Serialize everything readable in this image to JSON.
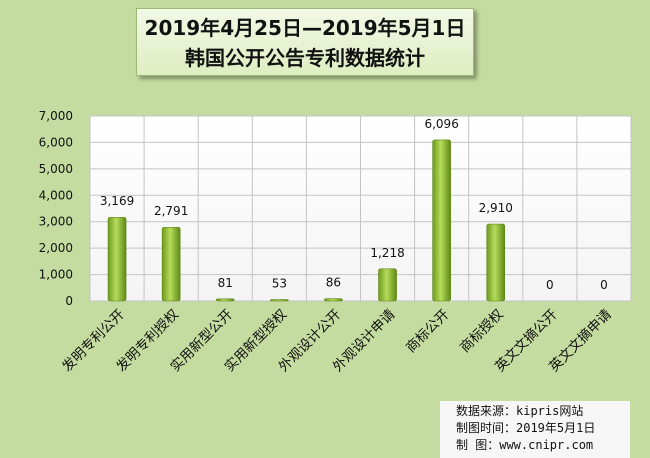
{
  "title_lines": [
    "2019年4月25日—2019年5月1日",
    "韩国公开公告专利数据统计"
  ],
  "source": {
    "line1": "数据来源：kipris网站",
    "line2": "制图时间：2019年5月1日",
    "line3": "制    图：www.cnipr.com"
  },
  "chart_data": {
    "type": "bar",
    "title": "2019年4月25日—2019年5月1日 韩国公开公告专利数据统计",
    "categories": [
      "发明专利公开",
      "发明专利授权",
      "实用新型公开",
      "实用新型授权",
      "外观设计公开",
      "外观设计申请",
      "商标公开",
      "商标授权",
      "英文文摘公开",
      "英文文摘申请"
    ],
    "values": [
      3169,
      2791,
      81,
      53,
      86,
      1218,
      6096,
      2910,
      0,
      0
    ],
    "value_labels": [
      "3,169",
      "2,791",
      "81",
      "53",
      "86",
      "1,218",
      "6,096",
      "2,910",
      "0",
      "0"
    ],
    "yticks": [
      "0",
      "1,000",
      "2,000",
      "3,000",
      "4,000",
      "5,000",
      "6,000",
      "7,000"
    ],
    "ylim": [
      0,
      7000
    ],
    "grid": true,
    "bar_color": "#8ab52e"
  }
}
